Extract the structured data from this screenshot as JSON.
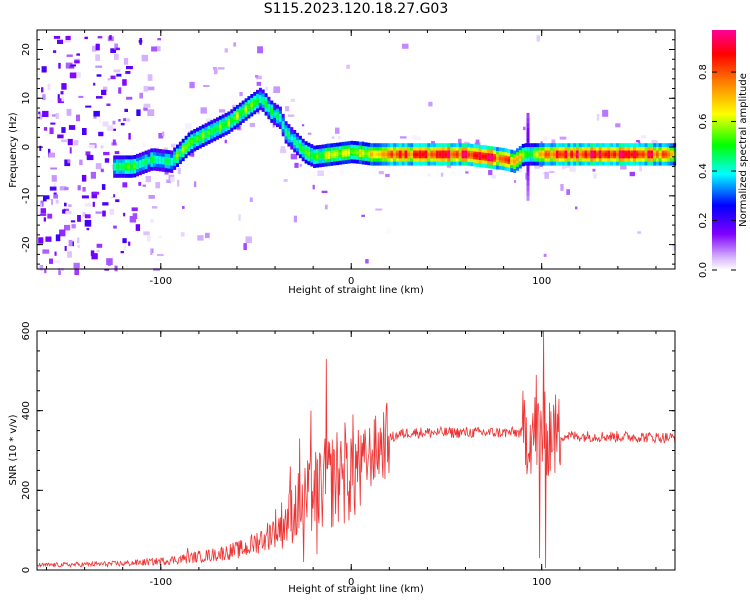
{
  "figure": {
    "title": "S115.2023.120.18.27.G03"
  },
  "chart_data": [
    {
      "type": "heatmap",
      "title": "S115.2023.120.18.27.G03",
      "xlabel": "Height of straight line (km)",
      "ylabel": "Frequency (Hz)",
      "xlim": [
        -165,
        170
      ],
      "ylim": [
        -25,
        24
      ],
      "xticks": [
        -100,
        0,
        100
      ],
      "yticks": [
        -20,
        -10,
        0,
        10,
        20
      ],
      "grid": false,
      "colorbar": {
        "label": "Normalized spectral amplitude",
        "range": [
          0,
          0.97
        ],
        "ticks": [
          0.0,
          0.2,
          0.4,
          0.6,
          0.8
        ]
      },
      "colormap": [
        "#ffffff",
        "#8000ff",
        "#0000ff",
        "#00ffff",
        "#00ff00",
        "#ffff00",
        "#ff8000",
        "#ff0000",
        "#ff00a0"
      ],
      "ridge": {
        "x": [
          -125,
          -115,
          -105,
          -95,
          -85,
          -75,
          -65,
          -55,
          -48,
          -42,
          -38,
          -35,
          -30,
          -25,
          -20,
          -10,
          0,
          10,
          20,
          40,
          60,
          70,
          80,
          85,
          90,
          95,
          100,
          120,
          140,
          160,
          170
        ],
        "frequency": [
          -4,
          -4,
          -2.5,
          -3,
          1,
          3,
          5,
          8,
          10,
          7,
          6,
          3,
          1,
          -1,
          -2,
          -1.5,
          -1,
          -1.5,
          -1.5,
          -1.5,
          -1.5,
          -2,
          -2.5,
          -3,
          -1.5,
          -1.5,
          -1.5,
          -1.5,
          -1.5,
          -1.5,
          -1.5
        ],
        "amplitude": [
          0.5,
          0.5,
          0.45,
          0.5,
          0.55,
          0.55,
          0.6,
          0.55,
          0.5,
          0.45,
          0.45,
          0.45,
          0.45,
          0.5,
          0.55,
          0.6,
          0.6,
          0.65,
          0.8,
          0.9,
          0.9,
          0.9,
          0.85,
          0.8,
          0.55,
          0.6,
          0.85,
          0.9,
          0.9,
          0.85,
          0.6
        ]
      }
    },
    {
      "type": "line",
      "xlabel": "Height of straight line (km)",
      "ylabel": "SNR (10 * v/v)",
      "xlim": [
        -165,
        170
      ],
      "ylim": [
        0,
        600
      ],
      "xticks": [
        -100,
        0,
        100
      ],
      "yticks": [
        0,
        200,
        400,
        600
      ],
      "grid": false,
      "color": "#ee3333",
      "envelope": {
        "x": [
          -165,
          -140,
          -120,
          -100,
          -85,
          -70,
          -55,
          -45,
          -35,
          -28,
          -20,
          -15,
          -5,
          5,
          15,
          20,
          25,
          30,
          40,
          60,
          80,
          95,
          105,
          120,
          140,
          160,
          170
        ],
        "snr": [
          12,
          14,
          16,
          22,
          30,
          40,
          55,
          85,
          120,
          160,
          190,
          210,
          240,
          265,
          310,
          330,
          340,
          345,
          345,
          345,
          345,
          345,
          338,
          336,
          335,
          333,
          332
        ]
      },
      "spikes": [
        {
          "x": -86,
          "snr": 55
        },
        {
          "x": -60,
          "snr": 60
        },
        {
          "x": -45,
          "snr": 85
        },
        {
          "x": -38,
          "snr": 130
        },
        {
          "x": -32,
          "snr": 260
        },
        {
          "x": -27,
          "snr": 330
        },
        {
          "x": -25,
          "snr": 20
        },
        {
          "x": -21,
          "snr": 400
        },
        {
          "x": -18,
          "snr": 40
        },
        {
          "x": -13,
          "snr": 530
        },
        {
          "x": -9,
          "snr": 300
        },
        {
          "x": -5,
          "snr": 260
        },
        {
          "x": 97,
          "snr": 490
        },
        {
          "x": 99,
          "snr": 30
        },
        {
          "x": 101,
          "snr": 600
        },
        {
          "x": 102,
          "snr": 5
        },
        {
          "x": 104,
          "snr": 420
        },
        {
          "x": 106,
          "snr": 300
        }
      ]
    }
  ]
}
